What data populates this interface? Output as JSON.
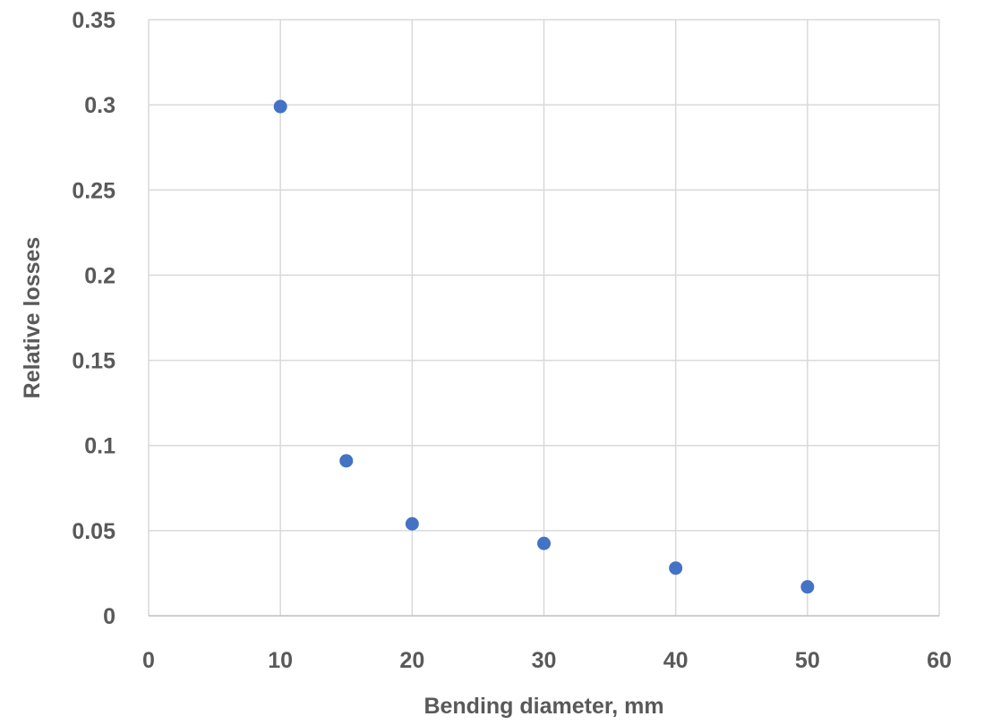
{
  "chart_data": {
    "type": "scatter",
    "title": "",
    "xlabel": "Bending diameter, mm",
    "ylabel": "Relative losses",
    "xlim": [
      0,
      60
    ],
    "ylim": [
      0,
      0.35
    ],
    "x_ticks": [
      "0",
      "10",
      "20",
      "30",
      "40",
      "50",
      "60"
    ],
    "y_ticks": [
      "0",
      "0.05",
      "0.1",
      "0.15",
      "0.2",
      "0.25",
      "0.3",
      "0.35"
    ],
    "grid": true,
    "legend": "none",
    "marker_color": "#4472C4",
    "series": [
      {
        "points": [
          {
            "x": 10,
            "y": 0.299
          },
          {
            "x": 15,
            "y": 0.091
          },
          {
            "x": 20,
            "y": 0.054
          },
          {
            "x": 30,
            "y": 0.0425
          },
          {
            "x": 40,
            "y": 0.028
          },
          {
            "x": 50,
            "y": 0.017
          }
        ]
      }
    ]
  }
}
